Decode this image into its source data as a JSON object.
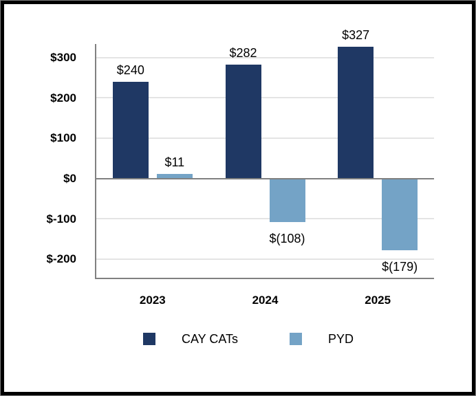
{
  "chart_data": {
    "type": "bar",
    "title": "",
    "xlabel": "",
    "ylabel": "",
    "categories": [
      "2023",
      "2024",
      "2025"
    ],
    "series": [
      {
        "name": "CAY CATs",
        "color": "#1f3864",
        "values": [
          240,
          282,
          327
        ],
        "value_labels": [
          "$240",
          "$282",
          "$327"
        ]
      },
      {
        "name": "PYD",
        "color": "#74a3c6",
        "values": [
          11,
          -108,
          -179
        ],
        "value_labels": [
          "$11",
          "$(108)",
          "$(179)"
        ]
      }
    ],
    "y_axis": {
      "ticks": [
        300,
        200,
        100,
        0,
        -100,
        -200
      ],
      "tick_labels": [
        "$300",
        "$200",
        "$100",
        "$0",
        "$-100",
        "$-200"
      ]
    },
    "ylim": [
      -250,
      333
    ],
    "grid": true,
    "legend_position": "bottom"
  },
  "colors": {
    "series_dark": "#1f3864",
    "series_light": "#74a3c6",
    "axis_line": "#808080",
    "gridline": "#e4e4e4",
    "text": "#000000",
    "background": "#ffffff",
    "frame_border": "#000000"
  }
}
